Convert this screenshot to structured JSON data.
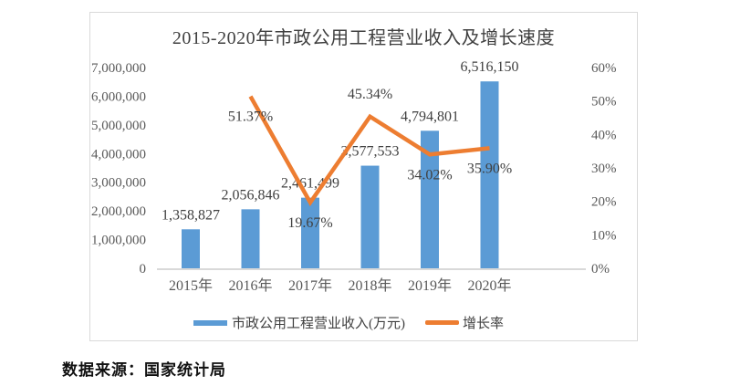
{
  "page": {
    "source_note": "数据来源：国家统计局"
  },
  "chart_data": {
    "type": "bar+line combo",
    "title": "2015-2020年市政公用工程营业收入及增长速度",
    "categories": [
      "2015年",
      "2016年",
      "2017年",
      "2018年",
      "2019年",
      "2020年"
    ],
    "series": [
      {
        "name": "市政公用工程营业收入(万元)",
        "type": "bar",
        "axis": "left",
        "color": "#5B9BD5",
        "values": [
          1358827,
          2056846,
          2461499,
          3577553,
          4794801,
          6516150
        ],
        "labels": [
          "1,358,827",
          "2,056,846",
          "2,461,499",
          "3,577,553",
          "4,794,801",
          "6,516,150"
        ]
      },
      {
        "name": "增长率",
        "type": "line",
        "axis": "right",
        "color": "#ED7D31",
        "values": [
          null,
          51.37,
          19.67,
          45.34,
          34.02,
          35.9
        ],
        "labels": [
          null,
          "51.37%",
          "19.67%",
          "45.34%",
          "34.02%",
          "35.90%"
        ],
        "label_side": [
          null,
          "below",
          "below",
          "above",
          "below",
          "below"
        ]
      }
    ],
    "left_axis": {
      "min": 0,
      "max": 7000000,
      "step": 1000000,
      "tick_labels": [
        "7,000,000",
        "6,000,000",
        "5,000,000",
        "4,000,000",
        "3,000,000",
        "2,000,000",
        "1,000,000",
        "0"
      ]
    },
    "right_axis": {
      "min": 0,
      "max": 60,
      "step": 10,
      "tick_labels": [
        "60%",
        "50%",
        "40%",
        "30%",
        "20%",
        "10%",
        "0%"
      ]
    },
    "legend_position": "bottom",
    "grid": false,
    "colors": {
      "frame_border": "#d9d9d9",
      "axis_line": "#d9d9d9",
      "tick_text": "#595959",
      "label_text": "#404040"
    }
  }
}
